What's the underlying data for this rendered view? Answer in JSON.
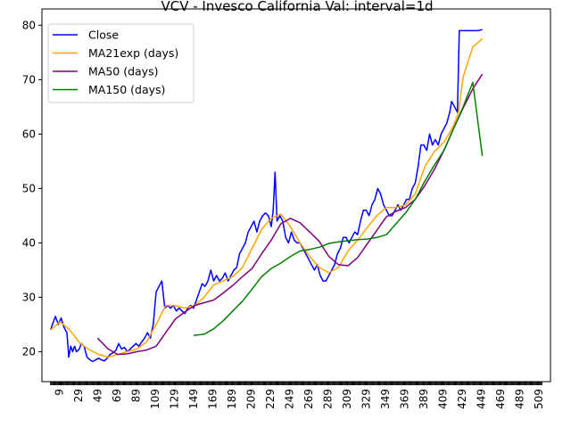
{
  "chart_data": {
    "type": "line",
    "title": "VCV - Invesco California Val: interval=1d",
    "xlabel": "",
    "ylabel": "",
    "xlim": [
      -9,
      521
    ],
    "ylim": [
      14.5,
      83
    ],
    "x_ticks": [
      9,
      29,
      49,
      69,
      89,
      109,
      129,
      149,
      169,
      189,
      209,
      229,
      249,
      269,
      289,
      309,
      329,
      349,
      369,
      389,
      409,
      429,
      449,
      469,
      489,
      509
    ],
    "y_ticks": [
      20,
      30,
      40,
      50,
      60,
      70,
      80
    ],
    "legend_position": "upper-left",
    "grid": false,
    "series": [
      {
        "name": "Close",
        "color": "#0000ff",
        "points": [
          [
            0,
            24
          ],
          [
            3,
            25.5
          ],
          [
            5,
            26.5
          ],
          [
            8,
            25
          ],
          [
            11,
            26.2
          ],
          [
            14,
            24.5
          ],
          [
            17,
            23.5
          ],
          [
            19,
            19
          ],
          [
            21,
            21
          ],
          [
            23,
            20
          ],
          [
            25,
            21
          ],
          [
            27,
            20
          ],
          [
            30,
            20.5
          ],
          [
            32,
            21.5
          ],
          [
            35,
            21
          ],
          [
            38,
            19
          ],
          [
            41,
            18.5
          ],
          [
            44,
            18.2
          ],
          [
            47,
            18.5
          ],
          [
            50,
            18.8
          ],
          [
            53,
            18.5
          ],
          [
            56,
            18.3
          ],
          [
            59,
            18.8
          ],
          [
            62,
            19.5
          ],
          [
            65,
            19.8
          ],
          [
            68,
            20.2
          ],
          [
            71,
            21.5
          ],
          [
            74,
            20.5
          ],
          [
            77,
            20.8
          ],
          [
            80,
            20
          ],
          [
            83,
            20.5
          ],
          [
            86,
            21
          ],
          [
            89,
            21.5
          ],
          [
            92,
            21
          ],
          [
            95,
            21.8
          ],
          [
            98,
            22.5
          ],
          [
            101,
            23.5
          ],
          [
            104,
            22.5
          ],
          [
            107,
            25
          ],
          [
            110,
            31
          ],
          [
            113,
            32
          ],
          [
            116,
            33
          ],
          [
            119,
            28
          ],
          [
            122,
            28.5
          ],
          [
            125,
            28
          ],
          [
            128,
            28.5
          ],
          [
            131,
            27.5
          ],
          [
            134,
            28
          ],
          [
            137,
            27.5
          ],
          [
            140,
            27
          ],
          [
            143,
            28
          ],
          [
            146,
            28.5
          ],
          [
            149,
            28
          ],
          [
            152,
            29.5
          ],
          [
            155,
            31
          ],
          [
            158,
            32.5
          ],
          [
            161,
            32
          ],
          [
            164,
            33
          ],
          [
            167,
            35
          ],
          [
            170,
            33
          ],
          [
            173,
            34
          ],
          [
            176,
            33
          ],
          [
            179,
            33.5
          ],
          [
            182,
            34.5
          ],
          [
            185,
            33
          ],
          [
            188,
            34
          ],
          [
            191,
            35
          ],
          [
            194,
            35.5
          ],
          [
            197,
            38
          ],
          [
            200,
            39
          ],
          [
            203,
            40
          ],
          [
            206,
            42
          ],
          [
            209,
            43
          ],
          [
            212,
            44
          ],
          [
            215,
            42
          ],
          [
            218,
            44
          ],
          [
            221,
            45
          ],
          [
            224,
            45.5
          ],
          [
            227,
            45
          ],
          [
            230,
            43
          ],
          [
            232,
            46
          ],
          [
            234,
            53
          ],
          [
            236,
            44
          ],
          [
            239,
            45
          ],
          [
            242,
            44
          ],
          [
            245,
            41
          ],
          [
            248,
            40
          ],
          [
            251,
            42
          ],
          [
            254,
            40.5
          ],
          [
            257,
            40
          ],
          [
            260,
            40
          ],
          [
            263,
            39
          ],
          [
            266,
            38
          ],
          [
            269,
            37
          ],
          [
            272,
            36
          ],
          [
            275,
            35
          ],
          [
            278,
            36
          ],
          [
            281,
            34
          ],
          [
            284,
            33
          ],
          [
            287,
            33
          ],
          [
            290,
            34
          ],
          [
            293,
            35
          ],
          [
            296,
            36
          ],
          [
            299,
            38
          ],
          [
            302,
            39
          ],
          [
            305,
            41
          ],
          [
            308,
            41
          ],
          [
            311,
            40
          ],
          [
            314,
            41
          ],
          [
            317,
            42
          ],
          [
            320,
            41.5
          ],
          [
            323,
            44
          ],
          [
            326,
            46
          ],
          [
            329,
            46
          ],
          [
            332,
            45
          ],
          [
            335,
            47
          ],
          [
            338,
            48
          ],
          [
            341,
            50
          ],
          [
            344,
            49
          ],
          [
            347,
            47
          ],
          [
            350,
            46
          ],
          [
            353,
            45
          ],
          [
            356,
            45
          ],
          [
            359,
            46
          ],
          [
            362,
            47
          ],
          [
            365,
            46
          ],
          [
            368,
            47
          ],
          [
            371,
            48
          ],
          [
            374,
            48
          ],
          [
            377,
            50
          ],
          [
            380,
            51
          ],
          [
            383,
            54
          ],
          [
            386,
            58
          ],
          [
            389,
            58
          ],
          [
            392,
            57
          ],
          [
            395,
            60
          ],
          [
            398,
            58
          ],
          [
            401,
            59
          ],
          [
            404,
            58
          ],
          [
            407,
            60
          ],
          [
            410,
            61
          ],
          [
            413,
            62
          ],
          [
            416,
            64
          ],
          [
            418,
            66
          ],
          [
            421,
            65
          ],
          [
            424,
            64
          ],
          [
            426,
            79
          ],
          [
            430,
            79
          ],
          [
            435,
            79
          ],
          [
            440,
            79
          ],
          [
            445,
            79
          ],
          [
            450,
            79.2
          ]
        ]
      },
      {
        "name": "MA21exp (days)",
        "color": "#ffa500",
        "points": [
          [
            0,
            24
          ],
          [
            10,
            25.5
          ],
          [
            20,
            24
          ],
          [
            30,
            21.7
          ],
          [
            40,
            20.4
          ],
          [
            50,
            19.5
          ],
          [
            60,
            19
          ],
          [
            70,
            19.5
          ],
          [
            80,
            20
          ],
          [
            90,
            20.5
          ],
          [
            100,
            21.8
          ],
          [
            110,
            25
          ],
          [
            120,
            28.5
          ],
          [
            130,
            28.5
          ],
          [
            140,
            28
          ],
          [
            150,
            28.5
          ],
          [
            160,
            30
          ],
          [
            170,
            32.3
          ],
          [
            180,
            33
          ],
          [
            190,
            33.8
          ],
          [
            200,
            35.5
          ],
          [
            210,
            39
          ],
          [
            220,
            42.5
          ],
          [
            230,
            44.5
          ],
          [
            240,
            45.3
          ],
          [
            250,
            43
          ],
          [
            260,
            40
          ],
          [
            270,
            37.5
          ],
          [
            280,
            35.5
          ],
          [
            290,
            34.5
          ],
          [
            300,
            35.5
          ],
          [
            310,
            38.5
          ],
          [
            320,
            40.5
          ],
          [
            330,
            42.8
          ],
          [
            340,
            45
          ],
          [
            350,
            46.5
          ],
          [
            360,
            46.5
          ],
          [
            370,
            47
          ],
          [
            380,
            49
          ],
          [
            390,
            54
          ],
          [
            400,
            56.8
          ],
          [
            410,
            58.5
          ],
          [
            420,
            61.5
          ],
          [
            425,
            64
          ],
          [
            430,
            70.5
          ],
          [
            440,
            76
          ],
          [
            450,
            77.5
          ]
        ]
      },
      {
        "name": "MA50 (days)",
        "color": "#800080",
        "points": [
          [
            49,
            22.5
          ],
          [
            60,
            20.5
          ],
          [
            70,
            19.5
          ],
          [
            80,
            19.6
          ],
          [
            90,
            20
          ],
          [
            100,
            20.3
          ],
          [
            110,
            21
          ],
          [
            120,
            23.5
          ],
          [
            130,
            26
          ],
          [
            140,
            27.3
          ],
          [
            150,
            28.5
          ],
          [
            160,
            29
          ],
          [
            170,
            29.5
          ],
          [
            180,
            30.8
          ],
          [
            190,
            32.2
          ],
          [
            200,
            33.8
          ],
          [
            210,
            35.3
          ],
          [
            220,
            38
          ],
          [
            230,
            40.5
          ],
          [
            240,
            43.5
          ],
          [
            250,
            44.5
          ],
          [
            260,
            43.7
          ],
          [
            270,
            42
          ],
          [
            280,
            40.3
          ],
          [
            290,
            37.5
          ],
          [
            300,
            36
          ],
          [
            310,
            35.8
          ],
          [
            320,
            37.3
          ],
          [
            330,
            39.8
          ],
          [
            340,
            42.3
          ],
          [
            350,
            44.8
          ],
          [
            360,
            45.8
          ],
          [
            370,
            46.5
          ],
          [
            380,
            48
          ],
          [
            390,
            50.5
          ],
          [
            400,
            53.5
          ],
          [
            410,
            57
          ],
          [
            420,
            61
          ],
          [
            430,
            64.8
          ],
          [
            440,
            68.3
          ],
          [
            450,
            71
          ]
        ]
      },
      {
        "name": "MA150 (days)",
        "color": "#008000",
        "points": [
          [
            149,
            23
          ],
          [
            160,
            23.2
          ],
          [
            170,
            24.2
          ],
          [
            180,
            25.7
          ],
          [
            190,
            27.5
          ],
          [
            200,
            29.3
          ],
          [
            210,
            31.5
          ],
          [
            220,
            33.8
          ],
          [
            230,
            35.3
          ],
          [
            240,
            36.3
          ],
          [
            250,
            37.5
          ],
          [
            260,
            38.5
          ],
          [
            270,
            38.8
          ],
          [
            280,
            39.2
          ],
          [
            290,
            39.9
          ],
          [
            300,
            40.2
          ],
          [
            310,
            40.4
          ],
          [
            320,
            40.6
          ],
          [
            330,
            40.7
          ],
          [
            340,
            41
          ],
          [
            350,
            41.5
          ],
          [
            360,
            43.5
          ],
          [
            370,
            45.5
          ],
          [
            380,
            48
          ],
          [
            390,
            51.3
          ],
          [
            400,
            54.3
          ],
          [
            410,
            57
          ],
          [
            420,
            61
          ],
          [
            430,
            65
          ],
          [
            440,
            69.5
          ],
          [
            450,
            56
          ]
        ]
      }
    ]
  }
}
